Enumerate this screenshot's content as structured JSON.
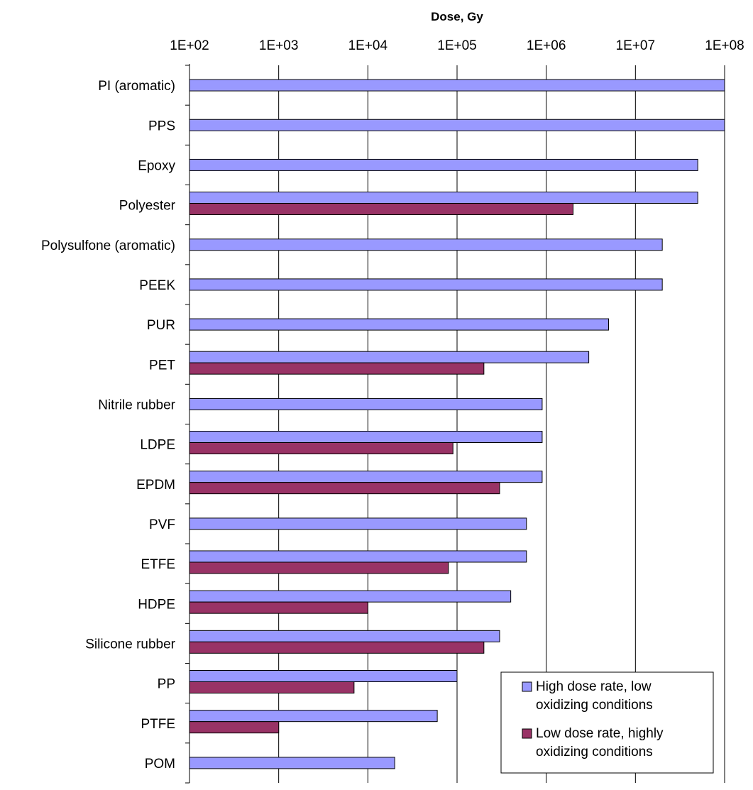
{
  "chart_data": {
    "type": "bar",
    "orientation": "horizontal",
    "xlabel": "Dose, Gy",
    "xscale": "log",
    "xlim": [
      100,
      100000000
    ],
    "xticks": [
      100,
      1000,
      10000,
      100000,
      1000000,
      10000000,
      100000000
    ],
    "xtick_labels": [
      "1E+02",
      "1E+03",
      "1E+04",
      "1E+05",
      "1E+06",
      "1E+07",
      "1E+08"
    ],
    "x_axis_position": "top",
    "grid": "vertical",
    "categories": [
      "PI (aromatic)",
      "PPS",
      "Epoxy",
      "Polyester",
      "Polysulfone (aromatic)",
      "PEEK",
      "PUR",
      "PET",
      "Nitrile rubber",
      "LDPE",
      "EPDM",
      "PVF",
      "ETFE",
      "HDPE",
      "Silicone rubber",
      "PP",
      "PTFE",
      "POM"
    ],
    "series": [
      {
        "name": "High dose rate, low oxidizing conditions",
        "color": "#9999ff",
        "values": [
          100000000,
          100000000,
          50000000,
          50000000,
          20000000,
          20000000,
          5000000,
          3000000,
          900000,
          900000,
          900000,
          600000,
          600000,
          400000,
          300000,
          100000,
          60000,
          20000
        ]
      },
      {
        "name": "Low dose rate, highly oxidizing conditions",
        "color": "#993366",
        "values": [
          null,
          null,
          null,
          2000000,
          null,
          null,
          null,
          200000,
          null,
          90000,
          300000,
          null,
          80000,
          10000,
          200000,
          7000,
          1000,
          null
        ]
      }
    ],
    "legend": {
      "position": "bottom-right",
      "lines": [
        [
          "High dose rate, low",
          "oxidizing conditions"
        ],
        [
          "Low dose rate, highly",
          "oxidizing conditions"
        ]
      ]
    }
  }
}
